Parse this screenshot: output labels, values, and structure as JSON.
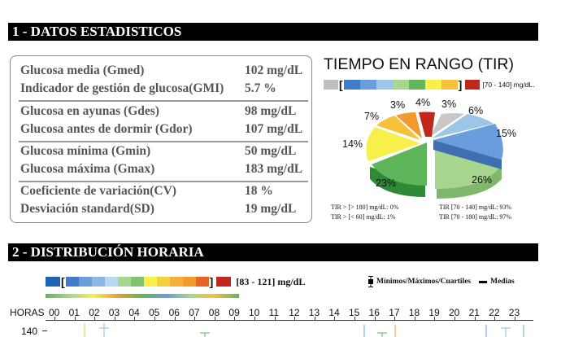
{
  "section1": {
    "title": "1 - DATOS ESTADISTICOS"
  },
  "stats": [
    {
      "label": "Glucosa media (Gmed)",
      "value": "102 mg/dL"
    },
    {
      "label": "Indicador de gestión de glucosa(GMI)",
      "value": "5.7 %"
    },
    {
      "label": "Glucosa en ayunas (Gdes)",
      "value": "98 mg/dL"
    },
    {
      "label": "Glucosa antes de dormir (Gdor)",
      "value": "107 mg/dL"
    },
    {
      "label": "Glucosa mínima (Gmin)",
      "value": "50 mg/dL"
    },
    {
      "label": "Glucosa máxima (Gmax)",
      "value": "183 mg/dL"
    },
    {
      "label": "Coeficiente de variación(CV)",
      "value": "18 %"
    },
    {
      "label": "Desviación standard(SD)",
      "value": "19 mg/dL"
    }
  ],
  "tir": {
    "title": "TIEMPO EN RANGO (TIR)",
    "legend_range": "[70 - 140]",
    "legend_unit": "mg/dL.",
    "footer": {
      "high": "TIR > [> 180] mg/dL: 0%",
      "low": "TIR > [<   60] mg/dL: 1%",
      "in_range_a": "TIR [70 - 140] mg/dL: 93%",
      "in_range_b": "TIR [70 - 180] mg/dL: 97%"
    },
    "labels": {
      "l3a": "3%",
      "l4": "4%",
      "l3b": "3%",
      "l6": "6%",
      "l7": "7%",
      "l15": "15%",
      "l14": "14%",
      "l23": "23%",
      "l26": "26%"
    },
    "colors": {
      "gray": "#c0c0c0",
      "blue_dark": "#1f63b5",
      "blue": "#5b8fd6",
      "blue_light": "#8fb6e3",
      "green_light": "#a8d68f",
      "green": "#5fb65a",
      "yellow": "#f7f04a",
      "yellow_orange": "#f5c03a",
      "orange": "#f29a2e",
      "red": "#c0281e"
    }
  },
  "section2": {
    "title": "2 - DISTRIBUCIÓN HORARIA"
  },
  "distribution": {
    "range": "[83 - 121] mg/dL",
    "legend_minmax": "Mínimos/Máximos/Cuartiles",
    "legend_medias": "Medias",
    "hours_label": "HORAS",
    "hours": [
      "00",
      "01",
      "02",
      "03",
      "04",
      "05",
      "06",
      "07",
      "08",
      "09",
      "10",
      "11",
      "12",
      "13",
      "14",
      "15",
      "16",
      "17",
      "18",
      "19",
      "20",
      "21",
      "22",
      "23"
    ],
    "y_tick": "140"
  }
}
